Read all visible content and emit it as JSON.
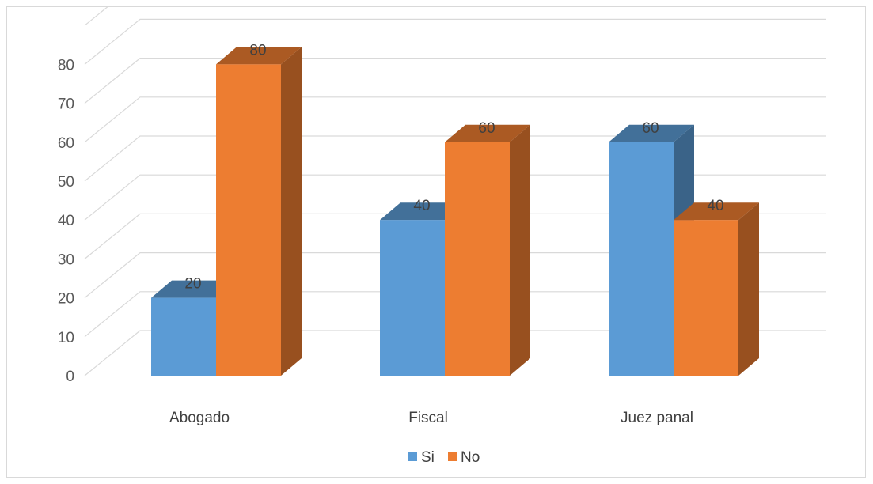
{
  "chart_data": {
    "type": "bar",
    "categories": [
      "Abogado",
      "Fiscal",
      "Juez panal"
    ],
    "series": [
      {
        "name": "Si",
        "values": [
          20,
          40,
          60
        ],
        "color": "#5b9bd5"
      },
      {
        "name": "No",
        "values": [
          80,
          60,
          40
        ],
        "color": "#ed7d31"
      }
    ],
    "title": "",
    "xlabel": "",
    "ylabel": "",
    "ylim": [
      0,
      80
    ],
    "yticks": [
      0,
      10,
      20,
      30,
      40,
      50,
      60,
      70,
      80
    ],
    "grid": true,
    "style": "3d-clustered-column",
    "data_labels": true,
    "legend": "bottom"
  }
}
